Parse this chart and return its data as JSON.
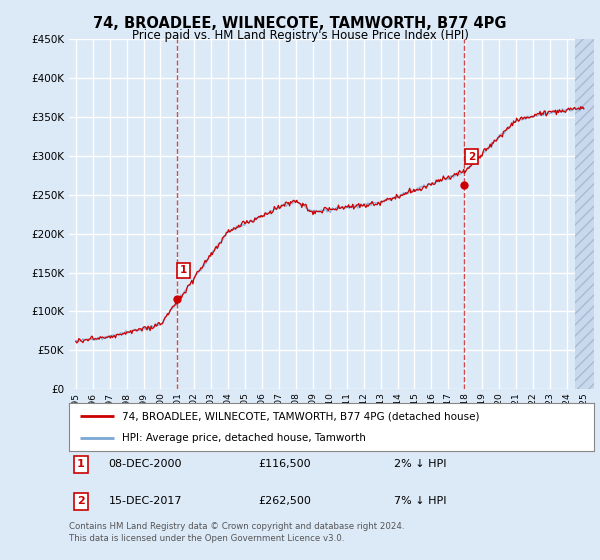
{
  "title": "74, BROADLEE, WILNECOTE, TAMWORTH, B77 4PG",
  "subtitle": "Price paid vs. HM Land Registry's House Price Index (HPI)",
  "bg_color": "#dce9f7",
  "plot_bg_color": "#dce9f7",
  "grid_color": "#ffffff",
  "hpi_color": "#7ba7d4",
  "price_color": "#cc0000",
  "ylim": [
    0,
    450000
  ],
  "yticks": [
    0,
    50000,
    100000,
    150000,
    200000,
    250000,
    300000,
    350000,
    400000,
    450000
  ],
  "x_start_year": 1995,
  "x_end_year": 2025,
  "marker1": {
    "date_index": 2000.95,
    "value": 116500,
    "label": "1"
  },
  "marker2": {
    "date_index": 2017.95,
    "value": 262500,
    "label": "2"
  },
  "legend_line1": "74, BROADLEE, WILNECOTE, TAMWORTH, B77 4PG (detached house)",
  "legend_line2": "HPI: Average price, detached house, Tamworth",
  "footnote": "Contains HM Land Registry data © Crown copyright and database right 2024.\nThis data is licensed under the Open Government Licence v3.0.",
  "table_rows": [
    {
      "num": "1",
      "date": "08-DEC-2000",
      "price": "£116,500",
      "pct": "2% ↓ HPI"
    },
    {
      "num": "2",
      "date": "15-DEC-2017",
      "price": "£262,500",
      "pct": "7% ↓ HPI"
    }
  ]
}
